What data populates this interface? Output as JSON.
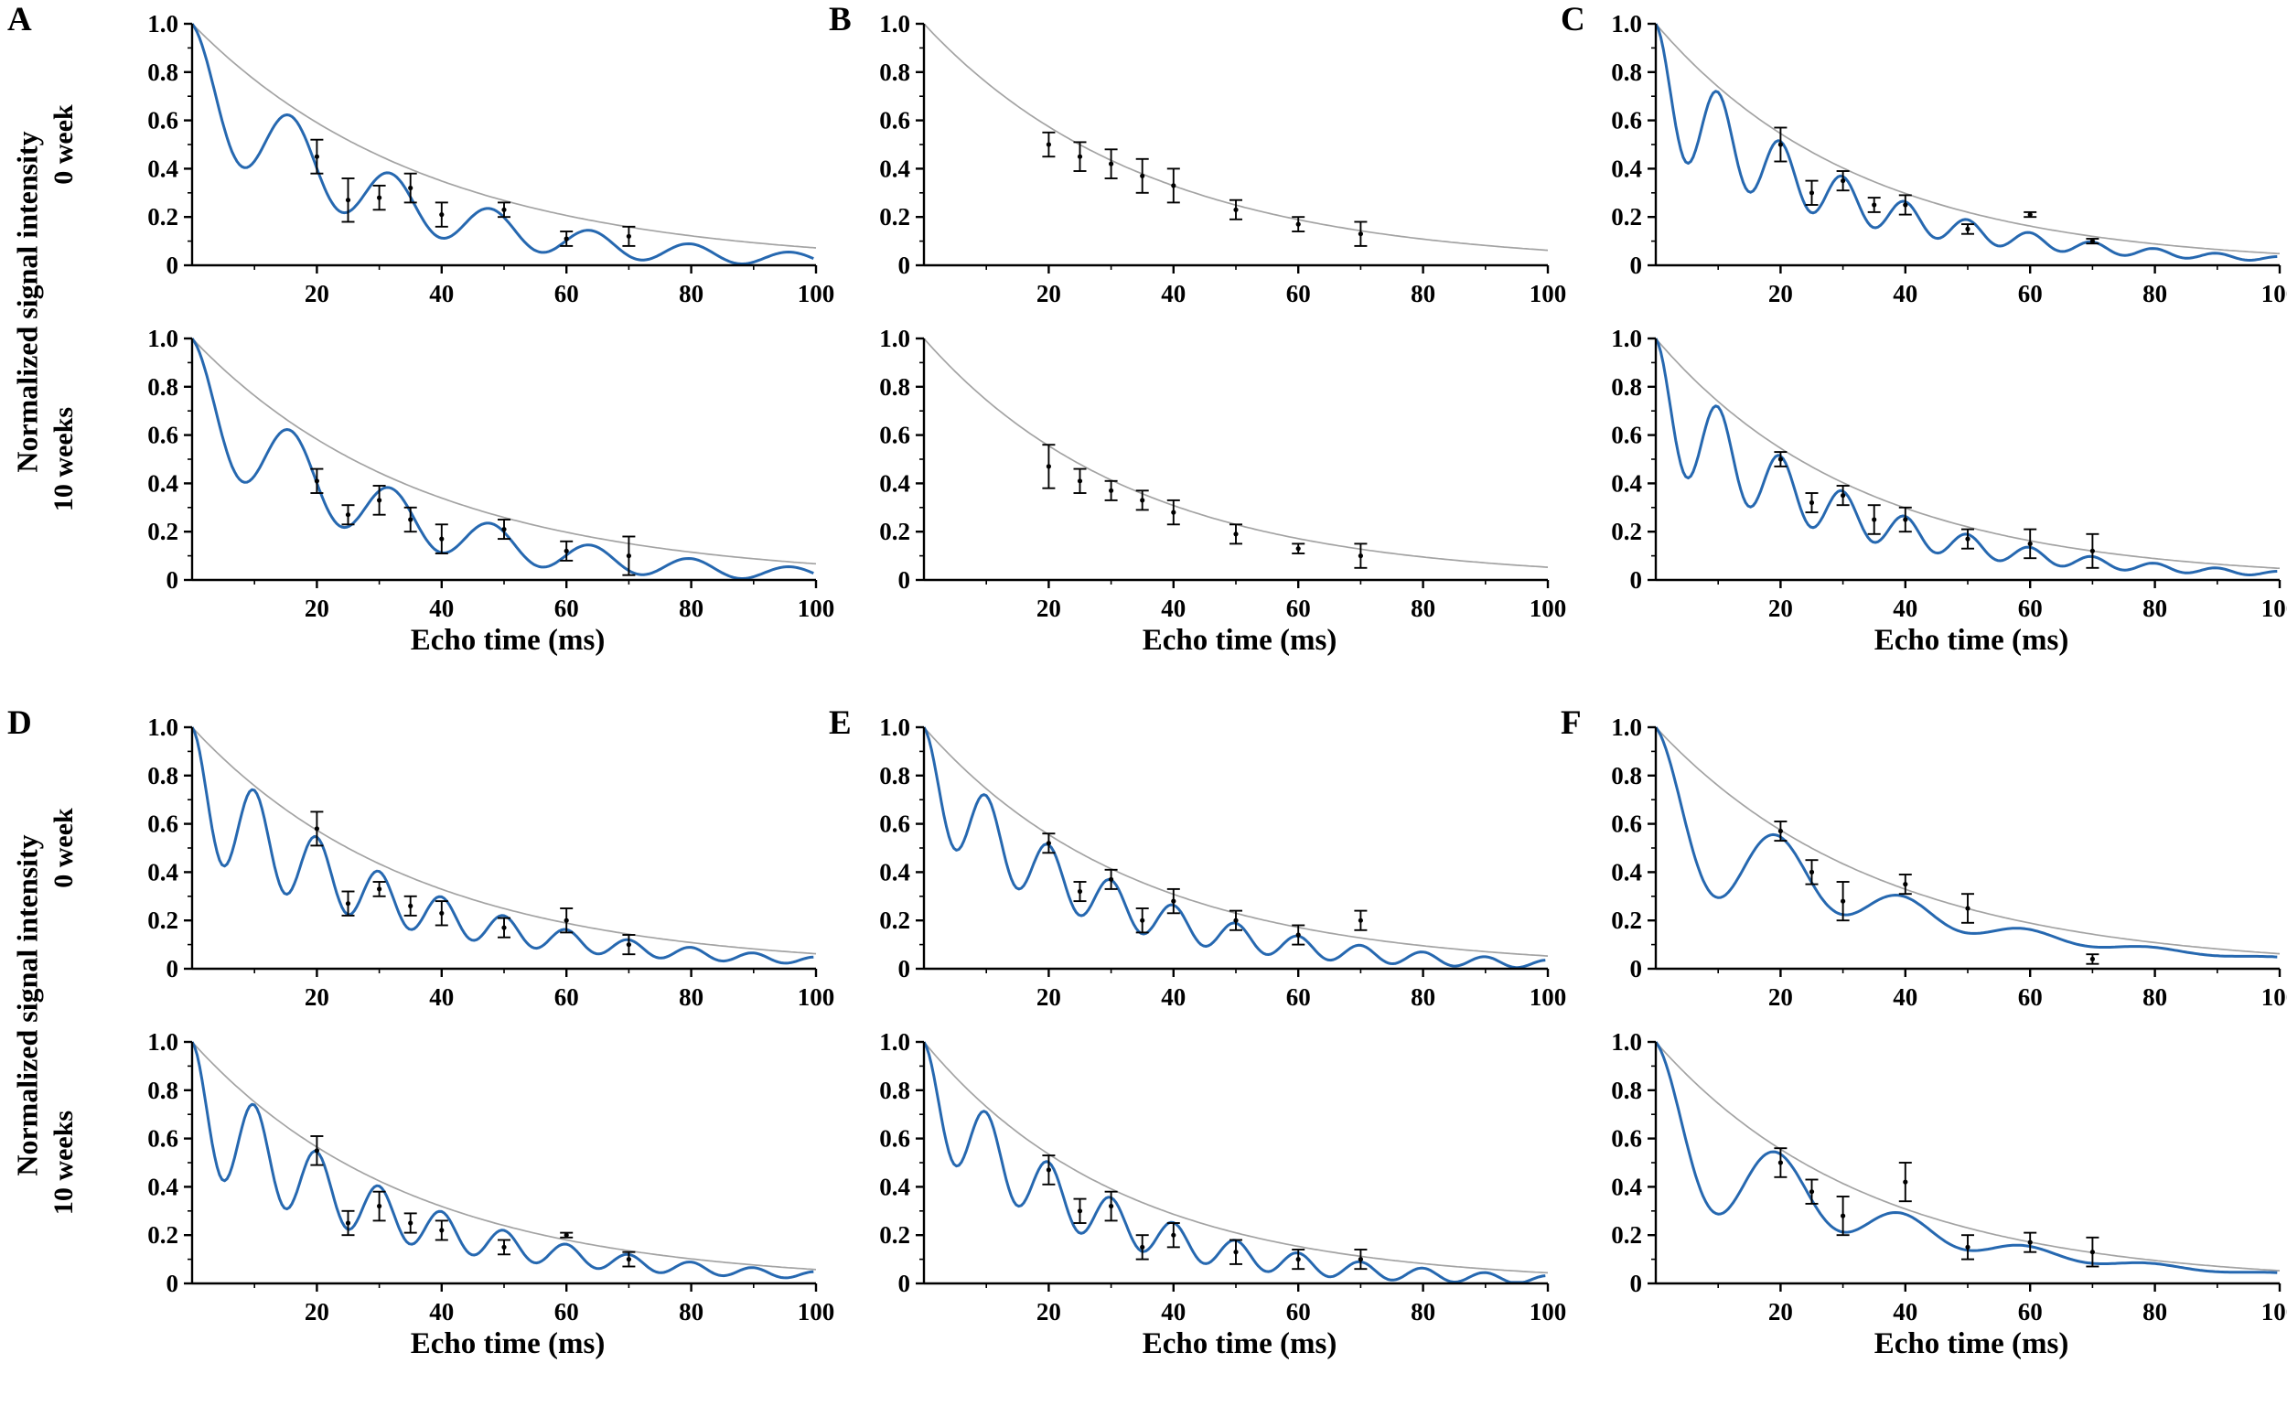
{
  "figure": {
    "ylabel": "Normalized signal intensity",
    "xlabel": "Echo time (ms)",
    "row_labels": [
      "0 week",
      "10 weeks"
    ],
    "colors": {
      "signal_curve": "#2668b0",
      "fit_curve": "#a3a3a3",
      "error_bars": "#000000",
      "axes": "#000000"
    },
    "panels": [
      {
        "letter": "A"
      },
      {
        "letter": "B"
      },
      {
        "letter": "C"
      },
      {
        "letter": "D"
      },
      {
        "letter": "E"
      },
      {
        "letter": "F"
      }
    ]
  },
  "axes": {
    "xlim": [
      0,
      100
    ],
    "ylim": [
      0,
      1.0
    ],
    "xticks": [
      20,
      40,
      60,
      80,
      100
    ],
    "xtick_labels": [
      "20",
      "40",
      "60",
      "80",
      "100"
    ],
    "xminor": [
      10,
      30,
      50,
      70,
      90
    ],
    "yticks": [
      0,
      0.2,
      0.4,
      0.6,
      0.8,
      1.0
    ],
    "ytick_labels": [
      "0",
      "0.2",
      "0.4",
      "0.6",
      "0.8",
      "1.0"
    ],
    "yminor": [
      0.1,
      0.3,
      0.5,
      0.7,
      0.9
    ],
    "grid": false
  },
  "chart_data": [
    {
      "panel": "A",
      "row": "0 week",
      "type": "line",
      "fit_curve": {
        "model": "exp(-t/T2)",
        "T2_ms": 38
      },
      "signal_curve": {
        "model": "exp(-t/T2) - amp*exp(-t/Td)*(1-cos(2*pi*t/P))/2",
        "T2_ms": 33,
        "period_ms": 16,
        "amp": 0.45,
        "Td_ms": 45
      },
      "points": [
        {
          "x": 20,
          "y": 0.45,
          "err": 0.07
        },
        {
          "x": 25,
          "y": 0.27,
          "err": 0.09
        },
        {
          "x": 30,
          "y": 0.28,
          "err": 0.05
        },
        {
          "x": 35,
          "y": 0.32,
          "err": 0.06
        },
        {
          "x": 40,
          "y": 0.21,
          "err": 0.05
        },
        {
          "x": 50,
          "y": 0.23,
          "err": 0.03
        },
        {
          "x": 60,
          "y": 0.11,
          "err": 0.03
        },
        {
          "x": 70,
          "y": 0.12,
          "err": 0.04
        }
      ]
    },
    {
      "panel": "A",
      "row": "10 weeks",
      "type": "line",
      "fit_curve": {
        "model": "exp(-t/T2)",
        "T2_ms": 37
      },
      "signal_curve": {
        "model": "exp(-t/T2) - amp*exp(-t/Td)*(1-cos(2*pi*t/P))/2",
        "T2_ms": 33,
        "period_ms": 16,
        "amp": 0.45,
        "Td_ms": 45
      },
      "points": [
        {
          "x": 20,
          "y": 0.41,
          "err": 0.05
        },
        {
          "x": 25,
          "y": 0.27,
          "err": 0.04
        },
        {
          "x": 30,
          "y": 0.33,
          "err": 0.06
        },
        {
          "x": 35,
          "y": 0.25,
          "err": 0.05
        },
        {
          "x": 40,
          "y": 0.17,
          "err": 0.06
        },
        {
          "x": 50,
          "y": 0.21,
          "err": 0.04
        },
        {
          "x": 60,
          "y": 0.12,
          "err": 0.04
        },
        {
          "x": 70,
          "y": 0.1,
          "err": 0.08
        }
      ]
    },
    {
      "panel": "B",
      "row": "0 week",
      "type": "line",
      "fit_curve": {
        "model": "exp(-t/T2)",
        "T2_ms": 36
      },
      "signal_curve": null,
      "points": [
        {
          "x": 20,
          "y": 0.5,
          "err": 0.05
        },
        {
          "x": 25,
          "y": 0.45,
          "err": 0.06
        },
        {
          "x": 30,
          "y": 0.42,
          "err": 0.06
        },
        {
          "x": 35,
          "y": 0.37,
          "err": 0.07
        },
        {
          "x": 40,
          "y": 0.33,
          "err": 0.07
        },
        {
          "x": 50,
          "y": 0.23,
          "err": 0.04
        },
        {
          "x": 60,
          "y": 0.17,
          "err": 0.03
        },
        {
          "x": 70,
          "y": 0.13,
          "err": 0.05
        }
      ]
    },
    {
      "panel": "B",
      "row": "10 weeks",
      "type": "line",
      "fit_curve": {
        "model": "exp(-t/T2)",
        "T2_ms": 34
      },
      "signal_curve": null,
      "points": [
        {
          "x": 20,
          "y": 0.47,
          "err": 0.09
        },
        {
          "x": 25,
          "y": 0.41,
          "err": 0.05
        },
        {
          "x": 30,
          "y": 0.37,
          "err": 0.04
        },
        {
          "x": 35,
          "y": 0.33,
          "err": 0.04
        },
        {
          "x": 40,
          "y": 0.28,
          "err": 0.05
        },
        {
          "x": 50,
          "y": 0.19,
          "err": 0.04
        },
        {
          "x": 60,
          "y": 0.13,
          "err": 0.02
        },
        {
          "x": 70,
          "y": 0.1,
          "err": 0.05
        }
      ]
    },
    {
      "panel": "C",
      "row": "0 week",
      "type": "line",
      "fit_curve": {
        "model": "exp(-t/T2)",
        "T2_ms": 33
      },
      "signal_curve": {
        "model": "exp(-t/T2) - amp*exp(-t/Td)*(1-cos(2*pi*t/P))/2",
        "T2_ms": 30,
        "period_ms": 10,
        "amp": 0.5,
        "Td_ms": 30
      },
      "points": [
        {
          "x": 20,
          "y": 0.5,
          "err": 0.07
        },
        {
          "x": 25,
          "y": 0.3,
          "err": 0.05
        },
        {
          "x": 30,
          "y": 0.35,
          "err": 0.04
        },
        {
          "x": 35,
          "y": 0.25,
          "err": 0.03
        },
        {
          "x": 40,
          "y": 0.25,
          "err": 0.04
        },
        {
          "x": 50,
          "y": 0.15,
          "err": 0.02
        },
        {
          "x": 60,
          "y": 0.21,
          "err": 0.01
        },
        {
          "x": 70,
          "y": 0.1,
          "err": 0.01
        }
      ]
    },
    {
      "panel": "C",
      "row": "10 weeks",
      "type": "line",
      "fit_curve": {
        "model": "exp(-t/T2)",
        "T2_ms": 33
      },
      "signal_curve": {
        "model": "exp(-t/T2) - amp*exp(-t/Td)*(1-cos(2*pi*t/P))/2",
        "T2_ms": 30,
        "period_ms": 10,
        "amp": 0.5,
        "Td_ms": 30
      },
      "points": [
        {
          "x": 20,
          "y": 0.5,
          "err": 0.03
        },
        {
          "x": 25,
          "y": 0.32,
          "err": 0.04
        },
        {
          "x": 30,
          "y": 0.35,
          "err": 0.04
        },
        {
          "x": 35,
          "y": 0.25,
          "err": 0.06
        },
        {
          "x": 40,
          "y": 0.25,
          "err": 0.05
        },
        {
          "x": 50,
          "y": 0.17,
          "err": 0.04
        },
        {
          "x": 60,
          "y": 0.15,
          "err": 0.06
        },
        {
          "x": 70,
          "y": 0.12,
          "err": 0.07
        }
      ]
    },
    {
      "panel": "D",
      "row": "0 week",
      "type": "line",
      "fit_curve": {
        "model": "exp(-t/T2)",
        "T2_ms": 36
      },
      "signal_curve": {
        "model": "exp(-t/T2) - amp*exp(-t/Td)*(1-cos(2*pi*t/P))/2",
        "T2_ms": 33,
        "period_ms": 10,
        "amp": 0.5,
        "Td_ms": 35
      },
      "points": [
        {
          "x": 20,
          "y": 0.58,
          "err": 0.07
        },
        {
          "x": 25,
          "y": 0.27,
          "err": 0.05
        },
        {
          "x": 30,
          "y": 0.33,
          "err": 0.03
        },
        {
          "x": 35,
          "y": 0.26,
          "err": 0.04
        },
        {
          "x": 40,
          "y": 0.23,
          "err": 0.05
        },
        {
          "x": 50,
          "y": 0.17,
          "err": 0.04
        },
        {
          "x": 60,
          "y": 0.2,
          "err": 0.05
        },
        {
          "x": 70,
          "y": 0.1,
          "err": 0.04
        }
      ]
    },
    {
      "panel": "D",
      "row": "10 weeks",
      "type": "line",
      "fit_curve": {
        "model": "exp(-t/T2)",
        "T2_ms": 35
      },
      "signal_curve": {
        "model": "exp(-t/T2) - amp*exp(-t/Td)*(1-cos(2*pi*t/P))/2",
        "T2_ms": 33,
        "period_ms": 10,
        "amp": 0.5,
        "Td_ms": 35
      },
      "points": [
        {
          "x": 20,
          "y": 0.55,
          "err": 0.06
        },
        {
          "x": 25,
          "y": 0.25,
          "err": 0.05
        },
        {
          "x": 30,
          "y": 0.32,
          "err": 0.06
        },
        {
          "x": 35,
          "y": 0.25,
          "err": 0.04
        },
        {
          "x": 40,
          "y": 0.22,
          "err": 0.04
        },
        {
          "x": 50,
          "y": 0.15,
          "err": 0.03
        },
        {
          "x": 60,
          "y": 0.2,
          "err": 0.01
        },
        {
          "x": 70,
          "y": 0.1,
          "err": 0.03
        }
      ]
    },
    {
      "panel": "E",
      "row": "0 week",
      "type": "line",
      "fit_curve": {
        "model": "exp(-t/T2)",
        "T2_ms": 34
      },
      "signal_curve": {
        "model": "exp(-t/T2) - amp*exp(-t/Td)*(1-cos(2*pi*t/P))/2",
        "T2_ms": 30,
        "period_ms": 10,
        "amp": 0.4,
        "Td_ms": 40
      },
      "points": [
        {
          "x": 20,
          "y": 0.52,
          "err": 0.04
        },
        {
          "x": 25,
          "y": 0.32,
          "err": 0.04
        },
        {
          "x": 30,
          "y": 0.37,
          "err": 0.04
        },
        {
          "x": 35,
          "y": 0.2,
          "err": 0.05
        },
        {
          "x": 40,
          "y": 0.28,
          "err": 0.05
        },
        {
          "x": 50,
          "y": 0.2,
          "err": 0.04
        },
        {
          "x": 60,
          "y": 0.14,
          "err": 0.04
        },
        {
          "x": 70,
          "y": 0.2,
          "err": 0.04
        }
      ]
    },
    {
      "panel": "E",
      "row": "10 weeks",
      "type": "line",
      "fit_curve": {
        "model": "exp(-t/T2)",
        "T2_ms": 32
      },
      "signal_curve": {
        "model": "exp(-t/T2) - amp*exp(-t/Td)*(1-cos(2*pi*t/P))/2",
        "T2_ms": 29,
        "period_ms": 10,
        "amp": 0.4,
        "Td_ms": 40
      },
      "points": [
        {
          "x": 20,
          "y": 0.47,
          "err": 0.06
        },
        {
          "x": 25,
          "y": 0.3,
          "err": 0.05
        },
        {
          "x": 30,
          "y": 0.32,
          "err": 0.06
        },
        {
          "x": 35,
          "y": 0.15,
          "err": 0.05
        },
        {
          "x": 40,
          "y": 0.2,
          "err": 0.05
        },
        {
          "x": 50,
          "y": 0.13,
          "err": 0.05
        },
        {
          "x": 60,
          "y": 0.1,
          "err": 0.04
        },
        {
          "x": 70,
          "y": 0.1,
          "err": 0.04
        }
      ]
    },
    {
      "panel": "F",
      "row": "0 week",
      "type": "line",
      "fit_curve": {
        "model": "exp(-t/T2)",
        "T2_ms": 36
      },
      "signal_curve": {
        "model": "exp(-t/T2) - amp*exp(-t/Td)*(1-cos(2*pi*t/P))/2",
        "T2_ms": 33,
        "period_ms": 20,
        "amp": 0.7,
        "Td_ms": 22
      },
      "points": [
        {
          "x": 20,
          "y": 0.57,
          "err": 0.04
        },
        {
          "x": 25,
          "y": 0.4,
          "err": 0.05
        },
        {
          "x": 30,
          "y": 0.28,
          "err": 0.08
        },
        {
          "x": 40,
          "y": 0.35,
          "err": 0.04
        },
        {
          "x": 50,
          "y": 0.25,
          "err": 0.06
        },
        {
          "x": 70,
          "y": 0.04,
          "err": 0.02
        }
      ]
    },
    {
      "panel": "F",
      "row": "10 weeks",
      "type": "line",
      "fit_curve": {
        "model": "exp(-t/T2)",
        "T2_ms": 34
      },
      "signal_curve": {
        "model": "exp(-t/T2) - amp*exp(-t/Td)*(1-cos(2*pi*t/P))/2",
        "T2_ms": 32,
        "period_ms": 20,
        "amp": 0.7,
        "Td_ms": 22
      },
      "points": [
        {
          "x": 20,
          "y": 0.5,
          "err": 0.06
        },
        {
          "x": 25,
          "y": 0.38,
          "err": 0.05
        },
        {
          "x": 30,
          "y": 0.28,
          "err": 0.08
        },
        {
          "x": 40,
          "y": 0.42,
          "err": 0.08
        },
        {
          "x": 50,
          "y": 0.15,
          "err": 0.05
        },
        {
          "x": 60,
          "y": 0.17,
          "err": 0.04
        },
        {
          "x": 70,
          "y": 0.13,
          "err": 0.06
        }
      ]
    }
  ]
}
